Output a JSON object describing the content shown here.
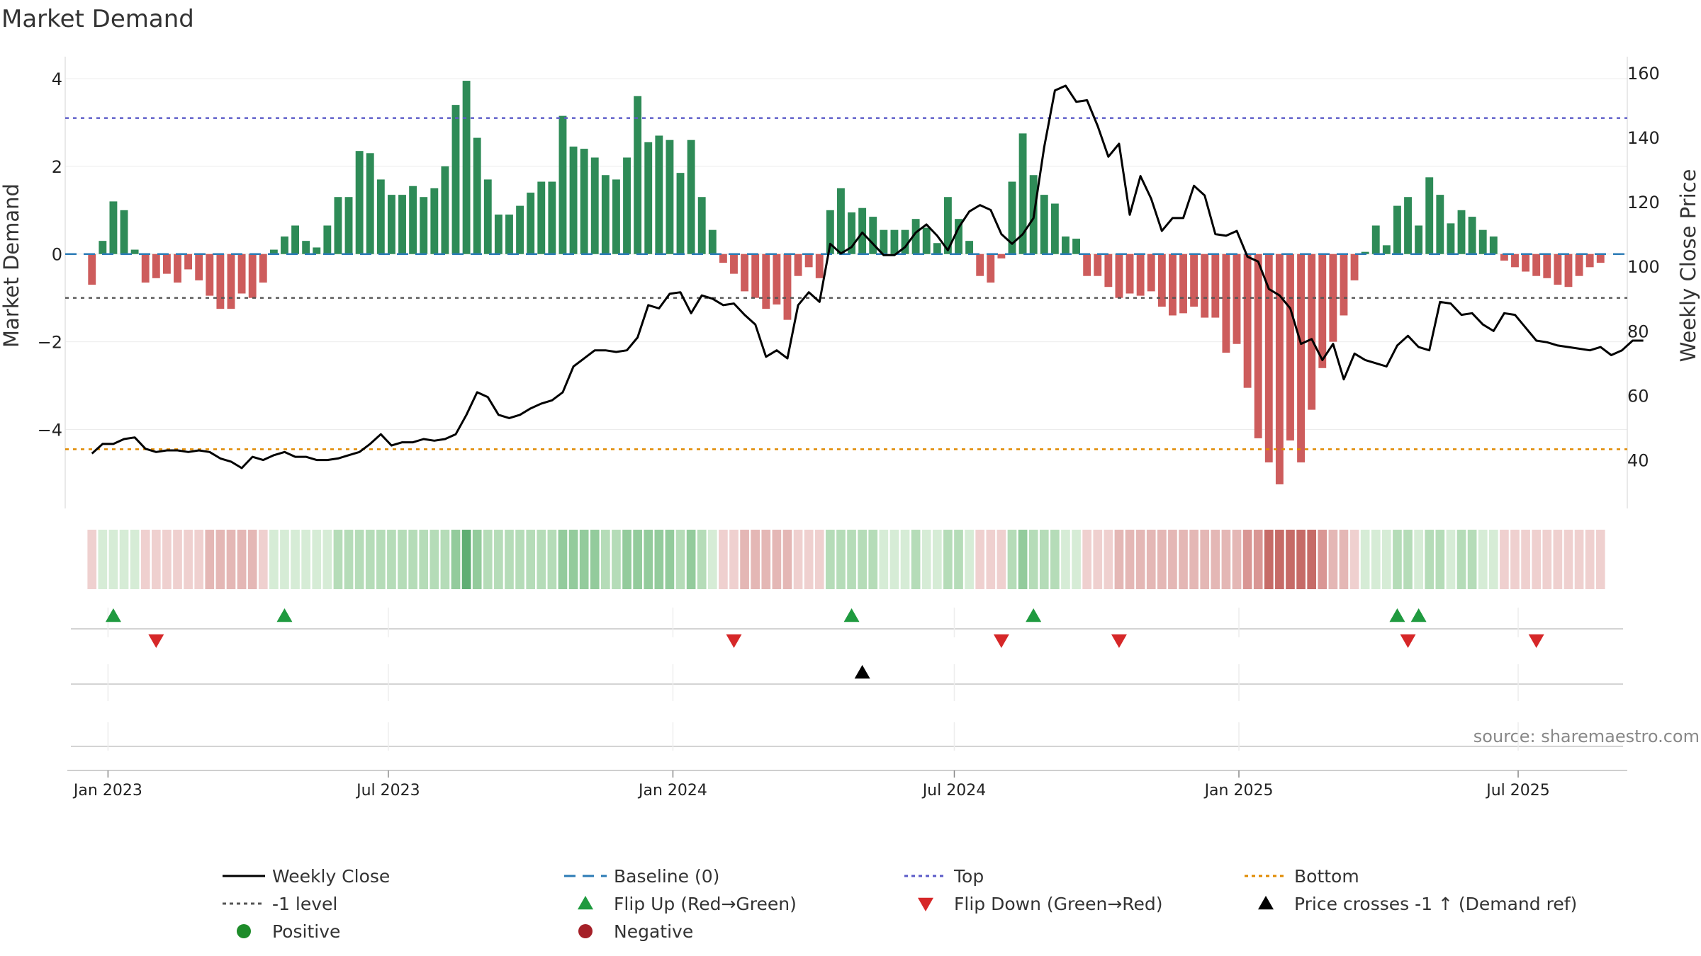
{
  "chart_data": {
    "type": "bar",
    "title": "Market Demand",
    "ylabel_left": "Market Demand",
    "ylabel_right": "Weekly Close Price",
    "source": "source: sharemaestro.com",
    "ylim_left": [
      -5.8,
      4.5
    ],
    "ylim_right": [
      25,
      165
    ],
    "yticks_left": [
      {
        "v": 4,
        "label": "4"
      },
      {
        "v": 2,
        "label": "2"
      },
      {
        "v": 0,
        "label": "0"
      },
      {
        "v": -2,
        "label": "−2"
      },
      {
        "v": -4,
        "label": "−4"
      }
    ],
    "yticks_right": [
      {
        "v": 160,
        "label": "160"
      },
      {
        "v": 140,
        "label": "140"
      },
      {
        "v": 120,
        "label": "120"
      },
      {
        "v": 100,
        "label": "100"
      },
      {
        "v": 80,
        "label": "80"
      },
      {
        "v": 60,
        "label": "60"
      },
      {
        "v": 40,
        "label": "40"
      }
    ],
    "x_range": [
      -2.5,
      143.5
    ],
    "xticks": [
      {
        "i": 1.5,
        "label": "Jan 2023"
      },
      {
        "i": 27.7,
        "label": "Jul 2023"
      },
      {
        "i": 54.3,
        "label": "Jan 2024"
      },
      {
        "i": 80.6,
        "label": "Jul 2024"
      },
      {
        "i": 107.2,
        "label": "Jan 2025"
      },
      {
        "i": 133.3,
        "label": "Jul 2025"
      }
    ],
    "demand": [
      -0.7,
      0.3,
      1.2,
      1.0,
      0.1,
      -0.65,
      -0.55,
      -0.45,
      -0.65,
      -0.35,
      -0.6,
      -0.95,
      -1.25,
      -1.25,
      -0.9,
      -1.0,
      -0.65,
      0.1,
      0.4,
      0.65,
      0.3,
      0.15,
      0.65,
      1.3,
      1.3,
      2.35,
      2.3,
      1.7,
      1.35,
      1.35,
      1.55,
      1.3,
      1.5,
      2.0,
      3.4,
      3.95,
      2.65,
      1.7,
      0.9,
      0.9,
      1.1,
      1.4,
      1.65,
      1.65,
      3.15,
      2.45,
      2.4,
      2.2,
      1.8,
      1.7,
      2.2,
      3.6,
      2.55,
      2.7,
      2.6,
      1.85,
      2.6,
      1.3,
      0.55,
      -0.2,
      -0.45,
      -0.85,
      -1.0,
      -1.25,
      -1.15,
      -1.5,
      -0.5,
      -0.3,
      -0.55,
      1.0,
      1.5,
      0.95,
      1.05,
      0.85,
      0.55,
      0.55,
      0.55,
      0.8,
      0.6,
      0.25,
      1.3,
      0.8,
      0.3,
      -0.5,
      -0.65,
      -0.1,
      1.65,
      2.75,
      1.8,
      1.35,
      1.15,
      0.4,
      0.35,
      -0.5,
      -0.5,
      -0.75,
      -1.0,
      -0.9,
      -0.95,
      -0.85,
      -1.2,
      -1.4,
      -1.35,
      -1.2,
      -1.45,
      -1.45,
      -2.25,
      -2.05,
      -3.05,
      -4.2,
      -4.75,
      -5.25,
      -4.25,
      -4.75,
      -3.55,
      -2.6,
      -2.0,
      -1.4,
      -0.6,
      0.05,
      0.65,
      0.2,
      1.1,
      1.3,
      0.65,
      1.75,
      1.35,
      0.7,
      1.0,
      0.85,
      0.55,
      0.4,
      -0.15,
      -0.3,
      -0.4,
      -0.5,
      -0.55,
      -0.7,
      -0.75,
      -0.5,
      -0.3,
      -0.2
    ],
    "close": [
      42,
      45,
      45,
      46.5,
      47,
      43.5,
      42.5,
      43,
      43,
      42.5,
      43,
      42.5,
      40.5,
      39.5,
      37.5,
      41,
      40,
      41.5,
      42.5,
      41,
      41,
      40,
      40,
      40.5,
      41.5,
      42.5,
      45,
      48,
      44.5,
      45.5,
      45.5,
      46.5,
      46,
      46.5,
      48,
      54,
      61,
      59.5,
      54,
      53,
      54,
      56,
      57.5,
      58.5,
      61,
      69,
      71.5,
      74,
      74,
      73.5,
      74,
      78,
      88,
      87,
      91.5,
      92,
      85.5,
      91,
      90,
      88,
      88.5,
      85,
      82,
      72,
      74,
      71.5,
      88,
      92,
      89,
      107,
      104,
      106,
      110.5,
      107,
      103.5,
      103.5,
      106,
      110.5,
      113,
      109.5,
      105,
      112,
      117,
      119,
      117.5,
      110,
      107,
      110,
      115,
      137,
      154.5,
      156,
      151,
      151.5,
      143.5,
      134,
      138,
      116,
      128,
      121,
      111,
      115,
      115,
      125,
      122,
      110,
      109.5,
      111,
      103,
      101.5,
      93,
      91,
      87,
      76,
      77.5,
      71,
      76,
      65,
      73,
      71,
      70,
      69,
      75.5,
      78.5,
      75,
      74,
      89,
      88.5,
      85,
      85.5,
      82,
      80,
      85.5,
      85,
      81,
      77,
      76.5,
      75.5,
      75,
      74.5,
      74,
      75,
      72.5,
      74,
      77,
      77
    ],
    "shade_levels": [
      -1,
      1,
      1,
      1,
      1,
      -1,
      -1,
      -1,
      -1,
      -1,
      -1,
      -2,
      -2,
      -2,
      -2,
      -2,
      -1,
      1,
      1,
      1,
      1,
      1,
      1,
      2,
      2,
      2,
      2,
      2,
      2,
      2,
      2,
      2,
      2,
      2,
      3,
      4,
      3,
      2,
      2,
      2,
      2,
      2,
      2,
      2,
      3,
      3,
      3,
      3,
      2,
      2,
      3,
      3,
      3,
      3,
      3,
      2,
      3,
      2,
      1,
      -1,
      -1,
      -2,
      -2,
      -2,
      -2,
      -2,
      -1,
      -1,
      -1,
      2,
      2,
      2,
      2,
      2,
      1,
      1,
      1,
      2,
      1,
      1,
      2,
      2,
      1,
      -1,
      -1,
      -1,
      2,
      3,
      2,
      2,
      2,
      1,
      1,
      -1,
      -1,
      -1,
      -2,
      -2,
      -2,
      -2,
      -2,
      -2,
      -2,
      -2,
      -2,
      -2,
      -2,
      -2,
      -3,
      -3,
      -4,
      -4,
      -4,
      -4,
      -4,
      -3,
      -2,
      -2,
      -1,
      1,
      1,
      1,
      2,
      2,
      1,
      2,
      2,
      1,
      2,
      2,
      1,
      1,
      -1,
      -1,
      -1,
      -1,
      -1,
      -1,
      -1,
      -1,
      -1,
      -1
    ],
    "top_level": 3.1,
    "bottom_level": -4.45,
    "minus1_level": -1.0,
    "baseline": 0,
    "flip_up": [
      2,
      18,
      71,
      88,
      122,
      124
    ],
    "flip_down": [
      6,
      60,
      85,
      96,
      123,
      135
    ],
    "price_cross": [
      72
    ],
    "legend": [
      {
        "key": "line",
        "color": "#000000",
        "label": "Weekly Close"
      },
      {
        "key": "dashed",
        "color": "#2c7bb6",
        "label": "Baseline (0)"
      },
      {
        "key": "dotted",
        "color": "#5a5ac8",
        "label": "Top"
      },
      {
        "key": "dotted",
        "color": "#e08a00",
        "label": "Bottom"
      },
      {
        "key": "dotted",
        "color": "#555555",
        "label": "-1 level"
      },
      {
        "key": "tri-up",
        "color": "#1f9a3f",
        "label": "Flip Up (Red→Green)"
      },
      {
        "key": "tri-down",
        "color": "#d62728",
        "label": "Flip Down (Green→Red)"
      },
      {
        "key": "tri-up",
        "color": "#000000",
        "label": "Price crosses -1 ↑ (Demand ref)"
      },
      {
        "key": "dot",
        "color": "#1e8c2a",
        "label": "Positive"
      },
      {
        "key": "dot",
        "color": "#a52028",
        "label": "Negative"
      }
    ],
    "colors": {
      "positive_bar": "#2e8b57",
      "negative_bar": "#cd5c5c",
      "close_line": "#000000",
      "baseline": "#2c7bb6",
      "top": "#5a5ac8",
      "bottom": "#e08a00",
      "minus1": "#555555",
      "flip_up": "#1f9a3f",
      "flip_down": "#d62728",
      "cross": "#000000",
      "heat_pos": [
        "#d6ecd6",
        "#b5dcb8",
        "#93cb9c",
        "#5fae73"
      ],
      "heat_neg": [
        "#efd0cf",
        "#e4b7b5",
        "#d99694",
        "#c66b67"
      ]
    }
  }
}
